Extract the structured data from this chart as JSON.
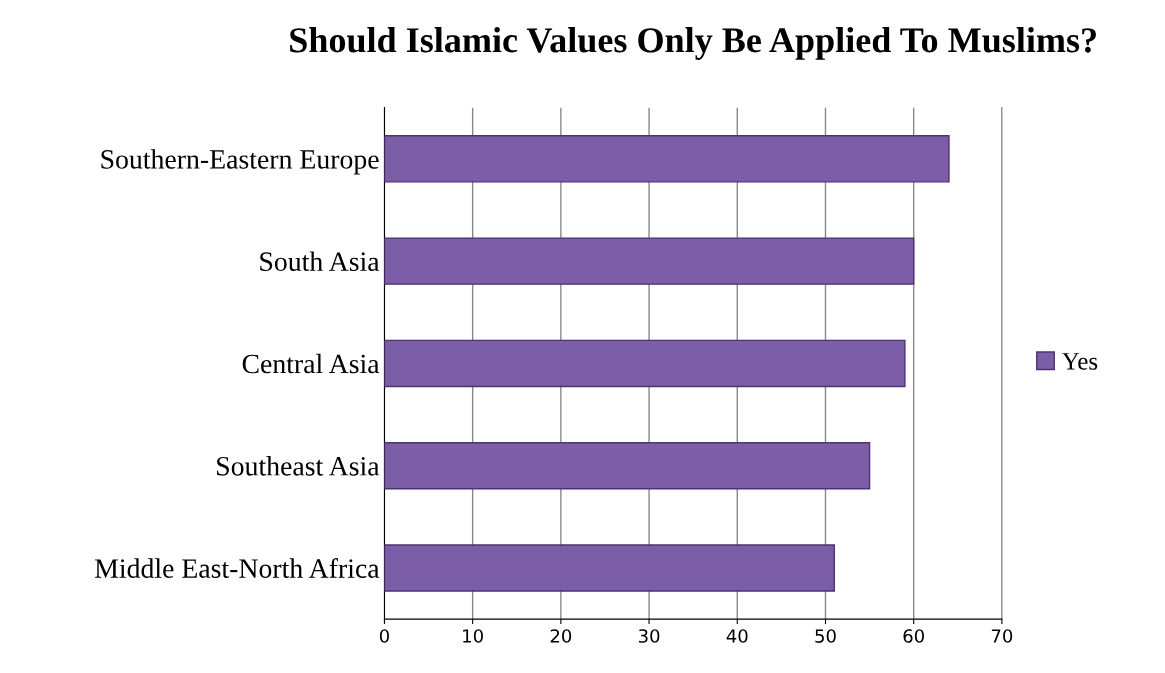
{
  "chart_data": {
    "type": "bar",
    "orientation": "horizontal",
    "title": "Should Islamic Values Only Be Applied To Muslims?",
    "categories": [
      "Southern-Eastern Europe",
      "South Asia",
      "Central Asia",
      "Southeast Asia",
      "Middle East-North Africa"
    ],
    "series": [
      {
        "name": "Yes",
        "color": "#7b5ea7",
        "values": [
          64,
          60,
          59,
          55,
          51
        ]
      }
    ],
    "xlim": [
      0,
      70
    ],
    "xticks": [
      0,
      10,
      20,
      30,
      40,
      50,
      60,
      70
    ],
    "grid": "x",
    "legend": "right"
  }
}
